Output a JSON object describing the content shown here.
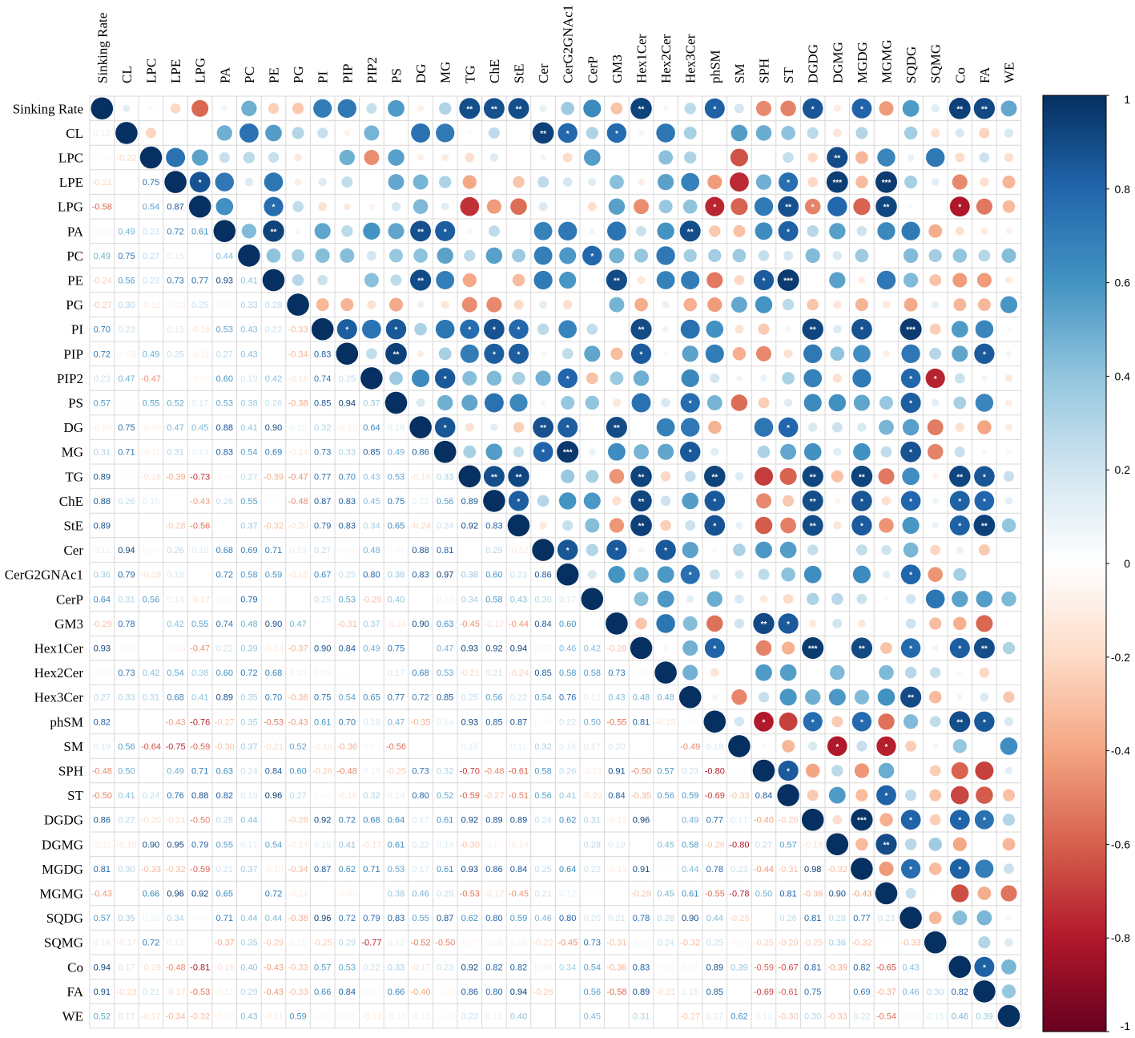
{
  "chart_data": {
    "type": "heatmap",
    "title": "",
    "variables": [
      "Sinking Rate",
      "CL",
      "LPC",
      "LPE",
      "LPG",
      "PA",
      "PC",
      "PE",
      "PG",
      "PI",
      "PIP",
      "PIP2",
      "PS",
      "DG",
      "MG",
      "TG",
      "ChE",
      "StE",
      "Cer",
      "CerG2GNAc1",
      "CerP",
      "GM3",
      "Hex1Cer",
      "Hex2Cer",
      "Hex3Cer",
      "phSM",
      "SM",
      "SPH",
      "ST",
      "DGDG",
      "DGMG",
      "MGDG",
      "MGMG",
      "SQDG",
      "SQMG",
      "Co",
      "FA",
      "WE"
    ],
    "lower_matrix": [
      [],
      [
        0.12
      ],
      [
        0.05,
        -0.22
      ],
      [
        -0.21,
        0.0,
        0.75
      ],
      [
        -0.58,
        0.0,
        0.54,
        0.87
      ],
      [
        0.07,
        0.49,
        0.23,
        0.72,
        0.61
      ],
      [
        0.49,
        0.75,
        0.27,
        0.15,
        0.0,
        0.44
      ],
      [
        -0.24,
        0.56,
        0.23,
        0.73,
        0.77,
        0.93,
        0.41
      ],
      [
        -0.27,
        0.3,
        -0.12,
        -0.1,
        0.25,
        0.06,
        0.33,
        0.28
      ],
      [
        0.7,
        0.23,
        0.01,
        0.15,
        -0.16,
        0.53,
        0.43,
        0.22,
        -0.33
      ],
      [
        0.72,
        -0.08,
        0.49,
        0.25,
        -0.11,
        0.27,
        0.43,
        0.0,
        -0.34,
        0.83
      ],
      [
        0.23,
        0.47,
        -0.47,
        0.0,
        -0.07,
        0.6,
        0.19,
        0.42,
        -0.16,
        0.74,
        0.25
      ],
      [
        0.57,
        0.02,
        0.55,
        0.52,
        0.17,
        0.53,
        0.38,
        0.26,
        -0.38,
        0.85,
        0.94,
        0.37
      ],
      [
        -0.09,
        0.75,
        -0.09,
        0.47,
        0.45,
        0.88,
        0.41,
        0.9,
        0.1,
        0.32,
        -0.1,
        0.64,
        0.16
      ],
      [
        0.31,
        0.71,
        -0.11,
        0.31,
        0.13,
        0.83,
        0.54,
        0.69,
        -0.14,
        0.73,
        0.33,
        0.85,
        0.49,
        0.86
      ],
      [
        0.89,
        0.04,
        -0.18,
        -0.39,
        -0.73,
        -0.06,
        0.27,
        -0.39,
        -0.47,
        0.77,
        0.7,
        0.43,
        0.53,
        -0.16,
        0.33
      ],
      [
        0.88,
        0.26,
        0.15,
        0.0,
        -0.43,
        0.26,
        0.55,
        0.02,
        -0.48,
        0.87,
        0.83,
        0.45,
        0.75,
        0.12,
        0.56,
        0.89
      ],
      [
        0.89,
        0.0,
        0.0,
        -0.28,
        -0.56,
        0.0,
        0.37,
        -0.32,
        -0.2,
        0.79,
        0.83,
        0.34,
        0.65,
        -0.24,
        0.24,
        0.92,
        0.83
      ],
      [
        0.11,
        0.94,
        0.07,
        0.26,
        0.16,
        0.68,
        0.69,
        0.71,
        0.13,
        0.27,
        -0.06,
        0.48,
        0.06,
        0.88,
        0.81,
        0.0,
        0.29,
        -0.12
      ],
      [
        0.36,
        0.79,
        -0.19,
        0.18,
        0.0,
        0.72,
        0.58,
        0.59,
        -0.18,
        0.67,
        0.25,
        0.8,
        0.38,
        0.83,
        0.97,
        0.38,
        0.6,
        0.23,
        0.86
      ],
      [
        0.64,
        0.31,
        0.56,
        0.14,
        -0.17,
        0.07,
        0.79,
        0.0,
        0.0,
        0.25,
        0.53,
        -0.29,
        0.4,
        0.0,
        0.1,
        0.34,
        0.58,
        0.43,
        0.3,
        0.17
      ],
      [
        -0.29,
        0.78,
        0.0,
        0.42,
        0.55,
        0.74,
        0.48,
        0.9,
        0.47,
        0.0,
        -0.31,
        0.37,
        -0.14,
        0.9,
        0.63,
        -0.45,
        -0.17,
        -0.44,
        0.84,
        0.6,
        0.0
      ],
      [
        0.93,
        0.06,
        0.0,
        -0.1,
        -0.47,
        0.22,
        0.39,
        -0.13,
        -0.37,
        0.9,
        0.84,
        0.49,
        0.75,
        0.0,
        0.47,
        0.93,
        0.92,
        0.94,
        0.07,
        0.46,
        0.42,
        -0.28
      ],
      [
        0.06,
        0.73,
        0.42,
        0.54,
        0.38,
        0.6,
        0.72,
        0.68,
        0.1,
        0.08,
        0.03,
        0.0,
        0.17,
        0.68,
        0.53,
        -0.21,
        0.21,
        -0.24,
        0.85,
        0.58,
        0.58,
        0.73,
        0.05
      ],
      [
        0.27,
        0.33,
        0.31,
        0.68,
        0.41,
        0.89,
        0.35,
        0.7,
        -0.36,
        0.75,
        0.54,
        0.65,
        0.77,
        0.72,
        0.85,
        0.25,
        0.56,
        0.22,
        0.54,
        0.76,
        0.12,
        0.43,
        0.48,
        0.48
      ],
      [
        0.82,
        0.01,
        0.0,
        -0.43,
        -0.76,
        -0.27,
        0.35,
        -0.53,
        -0.43,
        0.61,
        0.7,
        0.19,
        0.47,
        -0.35,
        0.14,
        0.93,
        0.85,
        0.87,
        0.05,
        0.22,
        0.5,
        -0.55,
        0.81,
        -0.15,
        0.06
      ],
      [
        0.19,
        0.56,
        -0.64,
        -0.75,
        -0.59,
        -0.3,
        0.37,
        -0.21,
        0.52,
        -0.16,
        -0.36,
        0.07,
        -0.56,
        0.0,
        0.0,
        0.15,
        0.0,
        0.11,
        0.32,
        0.16,
        0.17,
        0.2,
        0.0,
        0.0,
        -0.49,
        0.19
      ],
      [
        -0.48,
        0.5,
        0.0,
        0.49,
        0.71,
        0.63,
        0.24,
        0.84,
        0.6,
        -0.26,
        -0.48,
        0.1,
        -0.25,
        0.73,
        0.32,
        -0.7,
        -0.48,
        -0.61,
        0.58,
        0.26,
        -0.12,
        0.91,
        -0.5,
        0.57,
        0.23,
        -0.8,
        0.05
      ],
      [
        -0.5,
        0.41,
        0.24,
        0.76,
        0.88,
        0.82,
        0.19,
        0.96,
        0.27,
        0.06,
        -0.16,
        0.32,
        0.14,
        0.8,
        0.52,
        -0.59,
        -0.27,
        -0.51,
        0.56,
        0.41,
        -0.2,
        0.84,
        -0.35,
        0.56,
        0.59,
        -0.69,
        -0.33,
        0.84
      ],
      [
        0.86,
        0.27,
        -0.2,
        -0.21,
        -0.5,
        0.28,
        0.44,
        0.0,
        -0.28,
        0.92,
        0.72,
        0.68,
        0.64,
        0.17,
        0.61,
        0.92,
        0.89,
        0.89,
        0.24,
        0.62,
        0.31,
        -0.12,
        0.96,
        0.0,
        0.49,
        0.77,
        0.17,
        -0.4,
        -0.26
      ],
      [
        -0.11,
        -0.15,
        0.9,
        0.95,
        0.79,
        0.55,
        0.17,
        0.54,
        -0.14,
        0.15,
        0.41,
        -0.17,
        0.61,
        0.22,
        0.14,
        -0.3,
        -0.07,
        -0.14,
        0.0,
        0.0,
        0.28,
        0.19,
        0.0,
        0.45,
        0.58,
        -0.26,
        -0.8,
        0.27,
        0.57,
        -0.18
      ],
      [
        0.81,
        0.3,
        -0.33,
        -0.32,
        -0.59,
        0.21,
        0.37,
        -0.1,
        -0.34,
        0.87,
        0.62,
        0.71,
        0.53,
        0.17,
        0.61,
        0.93,
        0.86,
        0.84,
        0.25,
        0.64,
        0.22,
        -0.13,
        0.91,
        0.02,
        0.44,
        0.78,
        0.23,
        -0.44,
        -0.31,
        0.98,
        -0.32
      ],
      [
        -0.43,
        0.0,
        0.66,
        0.96,
        0.92,
        0.65,
        0.0,
        0.72,
        -0.12,
        0.0,
        -0.09,
        0.0,
        0.38,
        0.46,
        0.25,
        -0.53,
        -0.17,
        -0.45,
        0.21,
        0.12,
        -0.04,
        0.0,
        -0.29,
        0.45,
        0.61,
        -0.55,
        -0.78,
        0.5,
        0.81,
        -0.36,
        0.9,
        -0.43
      ],
      [
        0.57,
        0.35,
        0.1,
        0.34,
        0.05,
        0.71,
        0.44,
        0.44,
        -0.38,
        0.96,
        0.72,
        0.79,
        0.83,
        0.55,
        0.87,
        0.62,
        0.8,
        0.59,
        0.46,
        0.8,
        0.2,
        0.21,
        0.78,
        0.28,
        0.9,
        0.44,
        -0.25,
        -0.01,
        0.26,
        0.81,
        0.28,
        0.77,
        0.23
      ],
      [
        0.14,
        -0.17,
        0.72,
        0.12,
        0.0,
        -0.37,
        0.35,
        -0.29,
        0.11,
        -0.25,
        0.29,
        -0.77,
        0.12,
        -0.52,
        -0.5,
        -0.07,
        0.08,
        0.09,
        -0.22,
        -0.45,
        0.73,
        -0.31,
        0.07,
        0.24,
        -0.32,
        0.25,
        -0.06,
        -0.25,
        -0.29,
        -0.25,
        0.36,
        -0.32,
        -0.03,
        -0.33
      ],
      [
        0.94,
        0.17,
        -0.19,
        -0.48,
        -0.81,
        -0.16,
        0.4,
        -0.43,
        -0.33,
        0.57,
        0.53,
        0.22,
        0.33,
        -0.17,
        0.23,
        0.92,
        0.82,
        0.82,
        0.1,
        0.34,
        0.54,
        -0.36,
        0.83,
        -0.05,
        0.07,
        0.89,
        0.39,
        -0.59,
        -0.67,
        0.81,
        -0.39,
        0.82,
        -0.65,
        0.43,
        0.0
      ],
      [
        0.91,
        -0.23,
        0.21,
        -0.17,
        -0.53,
        -0.11,
        0.29,
        -0.43,
        -0.33,
        0.66,
        0.84,
        0.07,
        0.66,
        -0.4,
        -0.05,
        0.86,
        0.8,
        0.94,
        -0.26,
        0.0,
        0.56,
        -0.58,
        0.89,
        -0.21,
        0.16,
        0.85,
        0.02,
        -0.69,
        -0.61,
        0.75,
        0.0,
        0.69,
        -0.37,
        0.46,
        0.3,
        0.82
      ],
      [
        0.52,
        0.17,
        -0.17,
        -0.34,
        -0.32,
        -0.08,
        0.43,
        -0.11,
        0.59,
        0.05,
        0.07,
        -0.12,
        -0.1,
        -0.11,
        -0.05,
        0.23,
        0.12,
        0.4,
        0.0,
        0.0,
        0.45,
        0.0,
        0.31,
        0.0,
        -0.27,
        0.17,
        0.62,
        0.12,
        -0.3,
        0.3,
        -0.33,
        0.22,
        -0.54,
        -0.06,
        0.15,
        0.46,
        0.39
      ]
    ],
    "upper_stars": {
      "0": {
        "15": "**",
        "16": "**",
        "17": "**",
        "22": "**",
        "25": "*",
        "29": "*",
        "31": "*",
        "35": "**",
        "36": "**"
      },
      "1": {
        "18": "**",
        "19": "*",
        "21": "*"
      },
      "2": {
        "30": "**"
      },
      "3": {
        "4": "*",
        "28": "*",
        "30": "***",
        "32": "***"
      },
      "4": {
        "7": "*",
        "25": "*",
        "28": "**",
        "29": "*",
        "32": "**",
        "35": "*"
      },
      "5": {
        "7": "**",
        "13": "**",
        "14": "*",
        "24": "**",
        "28": "*"
      },
      "6": {
        "20": "*"
      },
      "7": {
        "13": "**",
        "21": "**",
        "27": "*",
        "28": "***"
      },
      "9": {
        "10": "*",
        "12": "*",
        "15": "*",
        "16": "*",
        "17": "*",
        "22": "**",
        "29": "**",
        "31": "*",
        "33": "***"
      },
      "10": {
        "12": "**",
        "16": "*",
        "17": "*",
        "22": "*",
        "36": "*"
      },
      "11": {
        "14": "*",
        "19": "*",
        "33": "*",
        "34": "*"
      },
      "12": {
        "24": "*",
        "33": "*"
      },
      "13": {
        "14": "*",
        "18": "**",
        "19": "*",
        "21": "**",
        "28": "*"
      },
      "14": {
        "18": "*",
        "19": "***",
        "24": "*",
        "33": "*"
      },
      "15": {
        "16": "**",
        "17": "**",
        "22": "**",
        "25": "**",
        "29": "**",
        "31": "**",
        "35": "**",
        "36": "*"
      },
      "16": {
        "17": "*",
        "22": "**",
        "25": "*",
        "29": "**",
        "31": "*",
        "33": "*",
        "35": "*",
        "36": "*"
      },
      "17": {
        "22": "**",
        "25": "*",
        "29": "**",
        "31": "*",
        "35": "*",
        "36": "**"
      },
      "18": {
        "19": "*",
        "21": "*",
        "23": "*"
      },
      "19": {
        "24": "*",
        "33": "*"
      },
      "21": {
        "27": "**",
        "28": "*"
      },
      "22": {
        "25": "*",
        "29": "***",
        "31": "**",
        "33": "*",
        "35": "*",
        "36": "**"
      },
      "24": {
        "33": "**"
      },
      "25": {
        "27": "*",
        "29": "*",
        "31": "*",
        "35": "**",
        "36": "*"
      },
      "26": {
        "30": "*",
        "32": "*"
      },
      "27": {
        "28": "*"
      },
      "28": {
        "32": "*"
      },
      "29": {
        "31": "***",
        "33": "*",
        "35": "*",
        "36": "*"
      },
      "30": {
        "32": "**"
      },
      "31": {
        "33": "*",
        "35": "*"
      },
      "35": {
        "36": "*"
      }
    },
    "colorbar": {
      "min": -1,
      "max": 1,
      "tick_labels": [
        "1",
        "0.8",
        "0.6",
        "0.4",
        "0.2",
        "0",
        "-0.2",
        "-0.4",
        "-0.6",
        "-0.8",
        "-1"
      ],
      "colors": [
        "#67001F",
        "#B2182B",
        "#D6604D",
        "#F4A582",
        "#FDDBC7",
        "#FFFFFF",
        "#D1E5F0",
        "#92C5DE",
        "#4393C3",
        "#2166AC",
        "#053061"
      ]
    }
  }
}
